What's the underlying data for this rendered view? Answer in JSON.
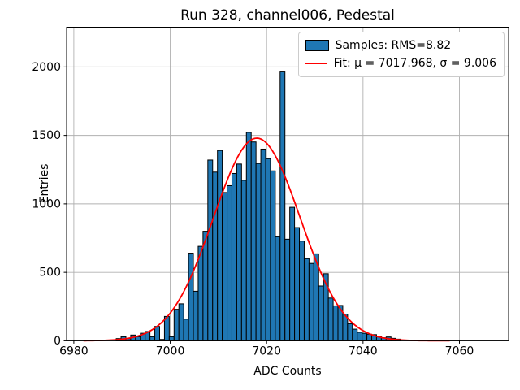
{
  "figure": {
    "title": "Run 328, channel006, Pedestal",
    "xlabel": "ADC Counts",
    "ylabel": "Entries"
  },
  "legend": {
    "samples_label": "Samples: RMS=8.82",
    "fit_label": "Fit: μ = 7017.968, σ = 9.006"
  },
  "chart_data": {
    "type": "bar",
    "subtype": "histogram-with-gaussian-fit",
    "title": "Run 328, channel006, Pedestal",
    "xlabel": "ADC Counts",
    "ylabel": "Entries",
    "xlim": [
      6978.5,
      7070.2
    ],
    "ylim": [
      0,
      2290
    ],
    "xticks": [
      6980,
      7000,
      7020,
      7040,
      7060
    ],
    "yticks": [
      0,
      500,
      1000,
      1500,
      2000
    ],
    "grid": true,
    "legend_position": "upper right",
    "legend_entries": [
      "Samples: RMS=8.82",
      "Fit: μ = 7017.968, σ = 9.006"
    ],
    "histogram": {
      "rms": 8.82,
      "bin_start": 6988.8,
      "bin_width": 1,
      "values": [
        16,
        30,
        16,
        42,
        30,
        55,
        68,
        30,
        105,
        10,
        178,
        30,
        230,
        270,
        158,
        640,
        362,
        690,
        800,
        1320,
        1232,
        1390,
        1083,
        1133,
        1222,
        1291,
        1172,
        1522,
        1452,
        1295,
        1400,
        1330,
        1241,
        760,
        1969,
        742,
        975,
        827,
        728,
        600,
        565,
        635,
        400,
        490,
        312,
        255,
        258,
        195,
        125,
        85,
        62,
        55,
        48,
        45,
        30,
        22,
        28,
        18,
        12
      ]
    },
    "fit": {
      "type": "gaussian",
      "mu": 7017.968,
      "sigma": 9.006,
      "peak": 1480,
      "x_start": 6982,
      "x_end": 7058
    },
    "colors": {
      "bar_fill": "#1f77b4",
      "bar_edge": "#000000",
      "fit_line": "#ff0000",
      "grid": "#b0b0b0",
      "spine": "#000000",
      "text": "#000000",
      "legend_border": "#cccccc",
      "background": "#ffffff"
    }
  }
}
